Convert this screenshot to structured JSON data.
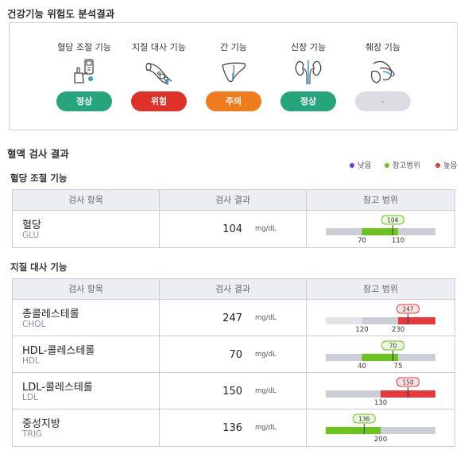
{
  "risk_title": "건강기능 위험도 분석결과",
  "risk_items": [
    {
      "label": "혈당 조절 기능",
      "status": "정상",
      "color": "#26a57d",
      "icon": "glucose-meter-icon"
    },
    {
      "label": "지질 대사 기능",
      "status": "위험",
      "color": "#e0302a",
      "icon": "blood-vessel-icon"
    },
    {
      "label": "간 기능",
      "status": "주의",
      "color": "#f07c1e",
      "icon": "liver-icon"
    },
    {
      "label": "신장 기능",
      "status": "정상",
      "color": "#26a57d",
      "icon": "kidney-icon"
    },
    {
      "label": "췌장 기능",
      "status": "-",
      "color": "#dcdde2",
      "icon": "pancreas-icon"
    }
  ],
  "blood_title": "혈액 검사 결과",
  "legend": {
    "low": {
      "label": "낮음",
      "color": "#6a3fd6"
    },
    "ref": {
      "label": "참고범위",
      "color": "#6cc31e"
    },
    "high": {
      "label": "높음",
      "color": "#e8393a"
    }
  },
  "headers": {
    "item": "검사 항목",
    "result": "검사 결과",
    "range": "참고 범위"
  },
  "groups": [
    {
      "title": "혈당 조절 기능",
      "rows": [
        {
          "name": "혈당",
          "code": "GLU",
          "value": "104",
          "unit": "mg/dL",
          "range_type": "between",
          "low": "70",
          "high": "110",
          "value_num": 104
        }
      ]
    },
    {
      "title": "지질 대사 기능",
      "rows": [
        {
          "name": "총콜레스테롤",
          "code": "CHOL",
          "value": "247",
          "unit": "mg/dL",
          "range_type": "over",
          "low": "120",
          "high": "230",
          "value_num": 247
        },
        {
          "name": "HDL-콜레스테롤",
          "code": "HDL",
          "value": "70",
          "unit": "mg/dL",
          "range_type": "between",
          "low": "40",
          "high": "75",
          "value_num": 70
        },
        {
          "name": "LDL-콜레스테롤",
          "code": "LDL",
          "value": "150",
          "unit": "mg/dL",
          "range_type": "over_single",
          "low": "",
          "high": "130",
          "value_num": 150
        },
        {
          "name": "중성지방",
          "code": "TRIG",
          "value": "136",
          "unit": "mg/dL",
          "range_type": "under_single",
          "low": "",
          "high": "200",
          "value_num": 136
        }
      ]
    }
  ]
}
